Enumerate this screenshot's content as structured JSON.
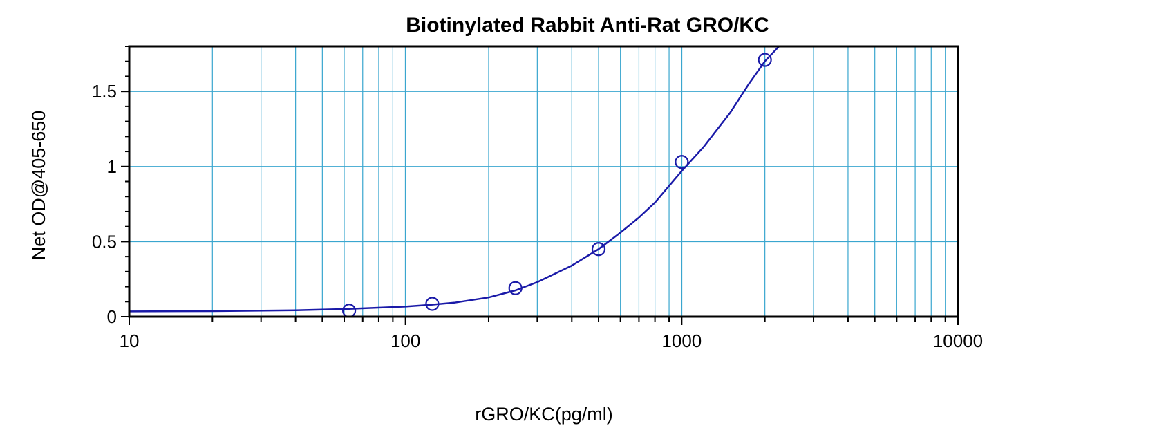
{
  "chart_data": {
    "type": "scatter",
    "title": "Biotinylated Rabbit Anti-Rat GRO/KC",
    "xlabel": "rGRO/KC(pg/ml)",
    "ylabel": "Net OD@405-650",
    "xscale": "log",
    "xlim": [
      10,
      10000
    ],
    "ylim": [
      0,
      1.8
    ],
    "x_ticks": [
      10,
      100,
      1000,
      10000
    ],
    "x_tick_labels": [
      "10",
      "100",
      "1000",
      "10000"
    ],
    "y_ticks": [
      0,
      0.5,
      1,
      1.5
    ],
    "y_tick_labels": [
      "0",
      "0.5",
      "1",
      "1.5"
    ],
    "grid": true,
    "legend": "none",
    "colors": {
      "grid": "#3aa6cf",
      "series": "#1a1aa8",
      "frame": "#000000"
    },
    "series": [
      {
        "kind": "points",
        "marker": "open-circle",
        "x": [
          62.5,
          125,
          250,
          500,
          1000,
          2000
        ],
        "y": [
          0.04,
          0.085,
          0.19,
          0.45,
          1.03,
          1.71
        ]
      },
      {
        "kind": "fitted-curve",
        "x": [
          10,
          20,
          40,
          62.5,
          100,
          125,
          150,
          200,
          250,
          300,
          400,
          500,
          600,
          700,
          800,
          1000,
          1200,
          1500,
          1750,
          2000,
          2250
        ],
        "y": [
          0.035,
          0.037,
          0.043,
          0.052,
          0.067,
          0.08,
          0.093,
          0.128,
          0.175,
          0.23,
          0.34,
          0.45,
          0.56,
          0.66,
          0.76,
          0.97,
          1.13,
          1.36,
          1.55,
          1.7,
          1.8
        ]
      }
    ]
  }
}
